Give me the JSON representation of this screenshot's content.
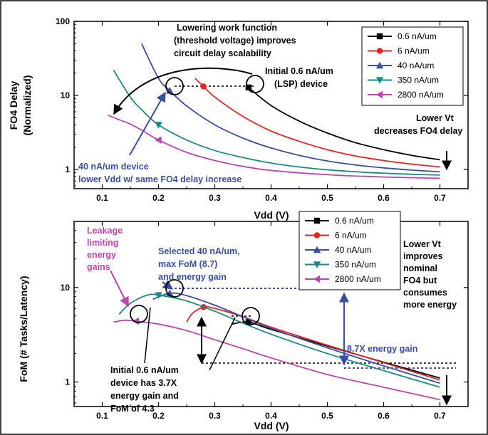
{
  "chart_data": [
    {
      "type": "line",
      "title": "",
      "xlabel": "Vdd (V)",
      "ylabel": "FO4 Delay (Normalized)",
      "yscale": "log",
      "xlim": [
        0.05,
        0.75
      ],
      "ylim": [
        0.55,
        100
      ],
      "x_ticks": [
        "0.1",
        "0.2",
        "0.3",
        "0.4",
        "0.5",
        "0.6",
        "0.7"
      ],
      "y_ticks": [
        "1",
        "10",
        "100"
      ],
      "legend_position": "top-right",
      "series": [
        {
          "name": "0.6 nA/um",
          "color": "#000000",
          "marker": "square",
          "x": [
            0.36,
            0.4,
            0.45,
            0.5,
            0.55,
            0.6,
            0.65,
            0.7
          ],
          "y": [
            12.8,
            7.3,
            4.5,
            3.1,
            2.3,
            1.85,
            1.55,
            1.35
          ]
        },
        {
          "name": "6 nA/um",
          "color": "#e8231f",
          "marker": "circle",
          "x": [
            0.265,
            0.28,
            0.3,
            0.35,
            0.4,
            0.45,
            0.5,
            0.55,
            0.6,
            0.65,
            0.7
          ],
          "y": [
            17,
            13.2,
            9.5,
            5.2,
            3.3,
            2.4,
            1.85,
            1.52,
            1.32,
            1.18,
            1.08
          ]
        },
        {
          "name": "40 nA/um",
          "color": "#3a4fa3",
          "marker": "triangle-up",
          "x": [
            0.17,
            0.2,
            0.22,
            0.25,
            0.3,
            0.35,
            0.4,
            0.45,
            0.5,
            0.55,
            0.6,
            0.65,
            0.7
          ],
          "y": [
            50,
            17,
            11.6,
            7.2,
            4.0,
            2.65,
            1.95,
            1.55,
            1.3,
            1.15,
            1.05,
            0.98,
            0.93
          ]
        },
        {
          "name": "350 nA/um",
          "color": "#1a8a85",
          "marker": "triangle-down",
          "x": [
            0.12,
            0.15,
            0.17,
            0.2,
            0.25,
            0.3,
            0.35,
            0.4,
            0.45,
            0.5,
            0.55,
            0.6,
            0.65,
            0.7
          ],
          "y": [
            22,
            9.5,
            6.4,
            4.0,
            2.5,
            1.8,
            1.45,
            1.22,
            1.08,
            0.99,
            0.93,
            0.89,
            0.86,
            0.84
          ]
        },
        {
          "name": "2800 nA/um",
          "color": "#c044b0",
          "marker": "triangle-left",
          "x": [
            0.11,
            0.13,
            0.15,
            0.17,
            0.2,
            0.25,
            0.3,
            0.35,
            0.4,
            0.5,
            0.6,
            0.7
          ],
          "y": [
            5.4,
            4.7,
            4.1,
            3.4,
            2.5,
            1.7,
            1.32,
            1.1,
            0.97,
            0.85,
            0.79,
            0.76
          ]
        }
      ],
      "annotations": [
        {
          "text": "Lowering work function",
          "color": "#000000"
        },
        {
          "text": "(threshold voltage) improves",
          "color": "#000000"
        },
        {
          "text": "circuit delay scalability",
          "color": "#000000"
        },
        {
          "text": "Initial 0.6 nA/um",
          "color": "#000000"
        },
        {
          "text": "(LSP) device",
          "color": "#000000"
        },
        {
          "text": "Lower Vt",
          "color": "#000000"
        },
        {
          "text": "decreases FO4 delay",
          "color": "#000000"
        },
        {
          "text": "40 nA/um device",
          "color": "#3a4fa3"
        },
        {
          "text": "lower Vdd w/ same FO4 delay increase",
          "color": "#3a4fa3"
        }
      ]
    },
    {
      "type": "line",
      "title": "",
      "xlabel": "Vdd (V)",
      "ylabel": "FoM (# Tasks/Latency)",
      "yscale": "log",
      "xlim": [
        0.05,
        0.75
      ],
      "ylim": [
        0.55,
        50
      ],
      "x_ticks": [
        "0.1",
        "0.2",
        "0.3",
        "0.4",
        "0.5",
        "0.6",
        "0.7"
      ],
      "y_ticks": [
        "1",
        "10"
      ],
      "legend_position": "top-center",
      "series": [
        {
          "name": "0.6 nA/um",
          "color": "#000000",
          "marker": "square",
          "x": [
            0.33,
            0.36,
            0.4,
            0.5,
            0.6,
            0.7
          ],
          "y": [
            4.1,
            4.3,
            3.6,
            2.4,
            1.62,
            1.1
          ]
        },
        {
          "name": "6 nA/um",
          "color": "#e8231f",
          "marker": "circle",
          "x": [
            0.25,
            0.26,
            0.28,
            0.3,
            0.35,
            0.4,
            0.5,
            0.6,
            0.7
          ],
          "y": [
            4.3,
            5.3,
            6.2,
            6.0,
            4.9,
            3.8,
            2.45,
            1.6,
            1.05
          ]
        },
        {
          "name": "40 nA/um",
          "color": "#3a4fa3",
          "marker": "triangle-up",
          "x": [
            0.19,
            0.22,
            0.25,
            0.3,
            0.35,
            0.4,
            0.5,
            0.6,
            0.7
          ],
          "y": [
            7.5,
            8.7,
            8.2,
            6.5,
            4.9,
            3.7,
            2.3,
            1.48,
            0.97
          ]
        },
        {
          "name": "350 nA/um",
          "color": "#1a8a85",
          "marker": "triangle-down",
          "x": [
            0.13,
            0.15,
            0.18,
            0.2,
            0.25,
            0.3,
            0.35,
            0.4,
            0.5,
            0.6,
            0.7
          ],
          "y": [
            5.2,
            6.8,
            8.3,
            8.3,
            7.2,
            5.6,
            4.2,
            3.2,
            2.0,
            1.32,
            0.88
          ]
        },
        {
          "name": "2800 nA/um",
          "color": "#c044b0",
          "marker": "triangle-left",
          "x": [
            0.12,
            0.14,
            0.16,
            0.2,
            0.25,
            0.3,
            0.35,
            0.4,
            0.5,
            0.6,
            0.7
          ],
          "y": [
            4.3,
            4.5,
            4.4,
            4.1,
            3.5,
            2.8,
            2.25,
            1.8,
            1.2,
            0.88,
            0.65
          ]
        }
      ],
      "annotations": [
        {
          "text": "Leakage",
          "color": "#c044b0"
        },
        {
          "text": "limiting",
          "color": "#c044b0"
        },
        {
          "text": "energy",
          "color": "#c044b0"
        },
        {
          "text": "gains",
          "color": "#c044b0"
        },
        {
          "text": "Selected 40 nA/um,",
          "color": "#3a4fa3"
        },
        {
          "text": "max FoM (8.7)",
          "color": "#3a4fa3"
        },
        {
          "text": "and energy gain",
          "color": "#3a4fa3"
        },
        {
          "text": "Lower Vt",
          "color": "#000000"
        },
        {
          "text": "improves",
          "color": "#000000"
        },
        {
          "text": "nominal",
          "color": "#000000"
        },
        {
          "text": "FO4 but",
          "color": "#000000"
        },
        {
          "text": "consumes",
          "color": "#000000"
        },
        {
          "text": "more energy",
          "color": "#000000"
        },
        {
          "text": "8.7X energy gain",
          "color": "#3a4fa3"
        },
        {
          "text": "Initial 0.6 nA/um",
          "color": "#000000"
        },
        {
          "text": "device has 3.7X",
          "color": "#000000"
        },
        {
          "text": "energy gain and",
          "color": "#000000"
        },
        {
          "text": "FoM of 4.3",
          "color": "#000000"
        }
      ]
    }
  ]
}
